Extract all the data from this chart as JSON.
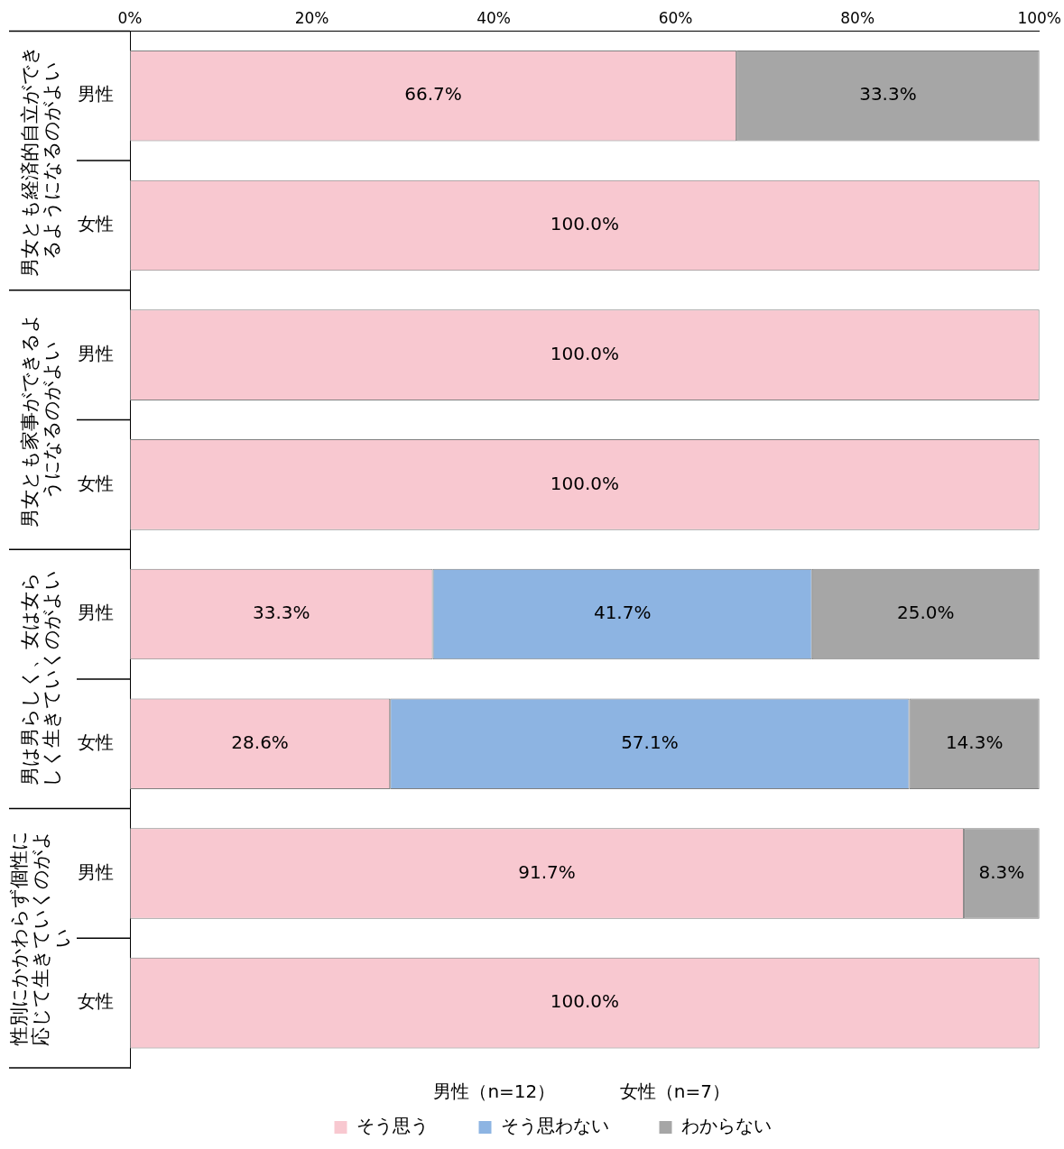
{
  "chart_data": {
    "type": "bar",
    "orientation": "horizontal",
    "stacked": true,
    "categories": [
      "男性",
      "女性",
      "男性",
      "女性",
      "男性",
      "女性",
      "男性",
      "女性"
    ],
    "series": [
      {
        "name": "そう思う",
        "color": "#f8c8d0",
        "values": [
          66.7,
          100,
          100,
          100,
          33.3,
          28.6,
          91.7,
          100
        ],
        "value_labels": [
          "66.7%",
          "100.0%",
          "100.0%",
          "100.0%",
          "33.3%",
          "28.6%",
          "91.7%",
          "100.0%"
        ]
      },
      {
        "name": "そう思わない",
        "color": "#8db4e2",
        "values": [
          null,
          null,
          null,
          null,
          41.7,
          57.1,
          null,
          null
        ],
        "value_labels": [
          null,
          null,
          null,
          null,
          "41.7%",
          "57.1%",
          null,
          null
        ]
      },
      {
        "name": "わからない",
        "color": "#a6a6a6",
        "values": [
          33.3,
          null,
          null,
          null,
          25.0,
          14.3,
          8.3,
          null
        ],
        "value_labels": [
          "33.3%",
          null,
          null,
          null,
          "25.0%",
          "14.3%",
          "8.3%",
          null
        ]
      }
    ],
    "xlim": [
      0,
      100
    ],
    "xticks": [
      {
        "value": 0,
        "label": "0%"
      },
      {
        "value": 20,
        "label": "20%"
      },
      {
        "value": 40,
        "label": "40%"
      },
      {
        "value": 60,
        "label": "60%"
      },
      {
        "value": 80,
        "label": "80%"
      },
      {
        "value": 100,
        "label": "100%"
      }
    ],
    "annotations": [
      "男女とも経済的自立ができるようになるのがよい",
      "男女とも家事ができるようになるのがよい",
      "男は男らしく、女は女らしく生きていくのがよい",
      "性別にかかわらず個性に応じて生きていくのがよい",
      "男性（n=12）",
      "女性（n=7）"
    ],
    "grid": false,
    "legend": "bottom"
  }
}
